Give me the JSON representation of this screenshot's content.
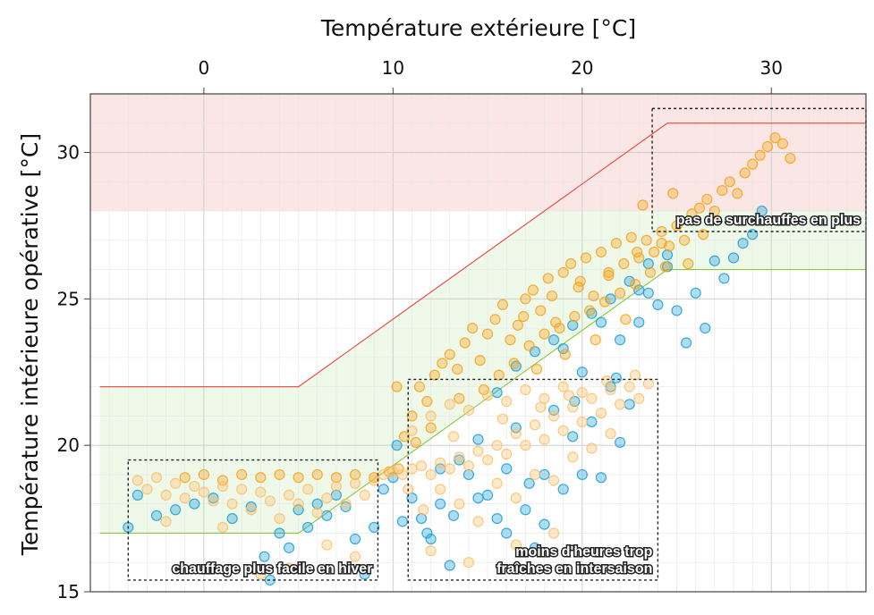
{
  "chart_data": {
    "type": "scatter",
    "title": "",
    "xlabel": "Température extérieure [°C]",
    "ylabel": "Température intérieure opérative [°C]",
    "xlim": [
      -6,
      35
    ],
    "ylim": [
      15,
      32
    ],
    "xticks": [
      0,
      10,
      20,
      30
    ],
    "yticks": [
      15,
      20,
      25,
      30
    ],
    "x_axis_position": "top",
    "grid": true,
    "colors": {
      "series_blue": "#1a9fd6",
      "series_orange": "#f7a21b",
      "series_light_orange": "#fbc06a",
      "upper_band": "#fbe3e3",
      "comfort_band": "#eef9ea",
      "upper_limit_line": "#e8433a",
      "lower_limit_line": "#8cc63f"
    },
    "upper_limit_line": {
      "x": [
        -5.5,
        5,
        24.5,
        33,
        35
      ],
      "y": [
        22,
        22,
        31,
        31,
        31
      ]
    },
    "lower_limit_line": {
      "x": [
        -5.5,
        5,
        24.5,
        33,
        35
      ],
      "y": [
        17,
        17,
        26,
        26,
        26
      ]
    },
    "overheat_zone": {
      "ymin": 28,
      "ymax": 32
    },
    "annotations": [
      {
        "text": "pas de surchauffes en plus",
        "box": {
          "x": [
            23.7,
            35
          ],
          "y": [
            27.3,
            31.5
          ]
        }
      },
      {
        "text": "moins d'heures trop\nfraîches en intersaison",
        "box": {
          "x": [
            10.8,
            24.0
          ],
          "y": [
            15.4,
            22.25
          ]
        }
      },
      {
        "text": "chauffage plus facile en hiver",
        "box": {
          "x": [
            -4.0,
            9.2
          ],
          "y": [
            15.4,
            19.5
          ]
        }
      }
    ],
    "series": [
      {
        "color": "#1a9fd6",
        "points": [
          [
            -4.0,
            17.2
          ],
          [
            -3.5,
            18.3
          ],
          [
            -2.5,
            17.6
          ],
          [
            -1.5,
            17.8
          ],
          [
            -0.5,
            18.0
          ],
          [
            0.5,
            18.2
          ],
          [
            1.5,
            17.5
          ],
          [
            2.5,
            17.9
          ],
          [
            3.2,
            16.2
          ],
          [
            3.5,
            15.4
          ],
          [
            4.0,
            17.0
          ],
          [
            4.5,
            16.5
          ],
          [
            5.0,
            17.8
          ],
          [
            5.5,
            17.2
          ],
          [
            6.0,
            18.0
          ],
          [
            6.5,
            17.6
          ],
          [
            7.0,
            18.3
          ],
          [
            7.5,
            17.9
          ],
          [
            8.0,
            16.8
          ],
          [
            8.5,
            15.6
          ],
          [
            9.0,
            17.2
          ],
          [
            9.5,
            18.5
          ],
          [
            10.0,
            18.9
          ],
          [
            10.2,
            20.0
          ],
          [
            10.5,
            17.4
          ],
          [
            11.0,
            18.2
          ],
          [
            11.5,
            17.5
          ],
          [
            12.0,
            16.8
          ],
          [
            12.5,
            18.0
          ],
          [
            13.0,
            15.9
          ],
          [
            13.5,
            19.5
          ],
          [
            14.0,
            19.0
          ],
          [
            14.5,
            20.2
          ],
          [
            15.0,
            18.3
          ],
          [
            15.5,
            17.5
          ],
          [
            16.0,
            19.2
          ],
          [
            16.5,
            20.6
          ],
          [
            17.0,
            17.8
          ],
          [
            17.5,
            16.5
          ],
          [
            18.0,
            19.0
          ],
          [
            18.5,
            21.2
          ],
          [
            19.0,
            18.5
          ],
          [
            19.5,
            20.3
          ],
          [
            20.0,
            22.5
          ],
          [
            20.5,
            20.8
          ],
          [
            21.0,
            18.9
          ],
          [
            21.5,
            22.0
          ],
          [
            22.0,
            23.6
          ],
          [
            22.5,
            21.4
          ],
          [
            23.0,
            24.2
          ],
          [
            23.5,
            25.2
          ],
          [
            24.0,
            24.8
          ],
          [
            24.5,
            26.1
          ],
          [
            25.0,
            24.6
          ],
          [
            25.5,
            23.5
          ],
          [
            26.0,
            25.2
          ],
          [
            26.5,
            24.0
          ],
          [
            27.0,
            26.3
          ],
          [
            27.5,
            25.7
          ],
          [
            28.0,
            26.4
          ],
          [
            28.5,
            26.9
          ],
          [
            29.0,
            27.2
          ],
          [
            29.5,
            28.0
          ],
          [
            15.5,
            21.8
          ],
          [
            16.5,
            22.7
          ],
          [
            17.5,
            23.2
          ],
          [
            18.5,
            23.6
          ],
          [
            19.5,
            24.1
          ],
          [
            20.5,
            24.5
          ],
          [
            21.5,
            25.0
          ],
          [
            22.5,
            25.6
          ],
          [
            23.5,
            26.2
          ],
          [
            24.5,
            26.5
          ],
          [
            19.0,
            23.3
          ],
          [
            21.0,
            24.2
          ],
          [
            23.0,
            25.3
          ],
          [
            12.5,
            19.2
          ],
          [
            14.5,
            18.2
          ],
          [
            16.0,
            17.0
          ],
          [
            18.0,
            17.3
          ],
          [
            20.0,
            19.0
          ],
          [
            22.0,
            20.1
          ],
          [
            11.8,
            17.0
          ],
          [
            13.2,
            17.6
          ],
          [
            17.2,
            18.7
          ],
          [
            19.6,
            21.5
          ],
          [
            21.8,
            22.3
          ]
        ]
      },
      {
        "color": "#f7a21b",
        "points": [
          [
            -1.0,
            18.9
          ],
          [
            0.0,
            19.0
          ],
          [
            1.0,
            18.8
          ],
          [
            2.0,
            19.0
          ],
          [
            3.0,
            18.9
          ],
          [
            4.0,
            19.0
          ],
          [
            5.0,
            18.9
          ],
          [
            6.0,
            19.0
          ],
          [
            7.0,
            18.9
          ],
          [
            8.0,
            19.0
          ],
          [
            9.0,
            18.9
          ],
          [
            9.8,
            19.1
          ],
          [
            10.3,
            19.2
          ],
          [
            10.6,
            20.3
          ],
          [
            11.0,
            21.0
          ],
          [
            11.4,
            22.0
          ],
          [
            11.8,
            21.5
          ],
          [
            12.2,
            22.4
          ],
          [
            12.6,
            22.8
          ],
          [
            13.0,
            23.1
          ],
          [
            13.4,
            22.6
          ],
          [
            13.8,
            23.5
          ],
          [
            14.2,
            24.0
          ],
          [
            14.6,
            22.9
          ],
          [
            15.0,
            23.8
          ],
          [
            15.4,
            24.3
          ],
          [
            15.8,
            24.8
          ],
          [
            16.2,
            23.6
          ],
          [
            16.6,
            24.1
          ],
          [
            17.0,
            25.0
          ],
          [
            17.4,
            25.3
          ],
          [
            17.8,
            24.6
          ],
          [
            18.2,
            25.7
          ],
          [
            18.6,
            24.2
          ],
          [
            19.0,
            25.9
          ],
          [
            19.4,
            26.2
          ],
          [
            19.8,
            25.4
          ],
          [
            20.2,
            26.4
          ],
          [
            20.6,
            25.1
          ],
          [
            21.0,
            26.6
          ],
          [
            21.4,
            25.8
          ],
          [
            21.8,
            26.9
          ],
          [
            22.2,
            26.2
          ],
          [
            22.6,
            27.1
          ],
          [
            23.0,
            26.4
          ],
          [
            23.4,
            27.0
          ],
          [
            23.8,
            26.6
          ],
          [
            24.2,
            27.3
          ],
          [
            24.6,
            26.8
          ],
          [
            25.0,
            27.5
          ],
          [
            25.4,
            27.0
          ],
          [
            25.8,
            27.9
          ],
          [
            26.2,
            28.1
          ],
          [
            26.6,
            28.4
          ],
          [
            27.0,
            28.0
          ],
          [
            27.4,
            28.7
          ],
          [
            27.8,
            29.0
          ],
          [
            28.2,
            28.6
          ],
          [
            28.6,
            29.3
          ],
          [
            29.0,
            29.6
          ],
          [
            29.4,
            29.9
          ],
          [
            29.8,
            30.2
          ],
          [
            30.2,
            30.5
          ],
          [
            30.6,
            30.3
          ],
          [
            31.0,
            29.8
          ],
          [
            15.6,
            22.4
          ],
          [
            16.4,
            22.8
          ],
          [
            17.2,
            23.4
          ],
          [
            18.0,
            23.8
          ],
          [
            18.8,
            24.0
          ],
          [
            19.6,
            24.4
          ],
          [
            20.4,
            24.6
          ],
          [
            21.2,
            24.9
          ],
          [
            22.0,
            25.2
          ],
          [
            22.8,
            25.5
          ],
          [
            23.6,
            25.9
          ],
          [
            24.4,
            26.1
          ],
          [
            16.9,
            24.4
          ],
          [
            18.4,
            25.1
          ],
          [
            19.9,
            25.6
          ],
          [
            21.4,
            25.9
          ],
          [
            22.9,
            26.6
          ],
          [
            24.2,
            26.9
          ],
          [
            20.7,
            23.6
          ],
          [
            22.3,
            24.3
          ],
          [
            19.1,
            23.1
          ],
          [
            17.6,
            22.6
          ],
          [
            13.5,
            21.6
          ],
          [
            12.0,
            20.6
          ],
          [
            11.2,
            20.1
          ],
          [
            14.8,
            21.9
          ],
          [
            10.2,
            22.0
          ],
          [
            23.2,
            28.2
          ],
          [
            24.8,
            28.6
          ],
          [
            25.6,
            26.2
          ],
          [
            26.4,
            27.2
          ]
        ]
      },
      {
        "color": "#fbc06a",
        "points": [
          [
            -3.5,
            18.8
          ],
          [
            -3.0,
            18.5
          ],
          [
            -2.5,
            18.9
          ],
          [
            -2.0,
            18.3
          ],
          [
            -1.5,
            18.7
          ],
          [
            -1.0,
            18.2
          ],
          [
            -0.5,
            18.6
          ],
          [
            0.0,
            18.4
          ],
          [
            0.5,
            18.1
          ],
          [
            1.0,
            18.6
          ],
          [
            1.5,
            18.0
          ],
          [
            2.0,
            18.5
          ],
          [
            2.5,
            17.8
          ],
          [
            3.0,
            18.4
          ],
          [
            3.5,
            18.1
          ],
          [
            4.0,
            17.5
          ],
          [
            4.5,
            18.3
          ],
          [
            5.0,
            18.0
          ],
          [
            5.5,
            18.5
          ],
          [
            6.0,
            17.7
          ],
          [
            6.5,
            18.2
          ],
          [
            7.0,
            18.6
          ],
          [
            7.5,
            18.0
          ],
          [
            8.0,
            18.7
          ],
          [
            8.5,
            18.3
          ],
          [
            9.0,
            18.8
          ],
          [
            9.5,
            19.0
          ],
          [
            10.0,
            19.1
          ],
          [
            10.5,
            19.0
          ],
          [
            11.0,
            19.2
          ],
          [
            11.5,
            19.3
          ],
          [
            12.0,
            19.0
          ],
          [
            12.5,
            19.4
          ],
          [
            13.0,
            19.2
          ],
          [
            13.5,
            19.6
          ],
          [
            14.0,
            19.3
          ],
          [
            14.5,
            19.8
          ],
          [
            15.0,
            19.5
          ],
          [
            15.5,
            20.0
          ],
          [
            16.0,
            19.7
          ],
          [
            16.5,
            20.4
          ],
          [
            17.0,
            20.0
          ],
          [
            17.5,
            20.7
          ],
          [
            18.0,
            20.2
          ],
          [
            18.5,
            21.0
          ],
          [
            19.0,
            20.5
          ],
          [
            19.5,
            21.3
          ],
          [
            20.0,
            20.8
          ],
          [
            20.5,
            21.6
          ],
          [
            21.0,
            21.1
          ],
          [
            21.5,
            21.9
          ],
          [
            22.0,
            21.4
          ],
          [
            22.5,
            22.0
          ],
          [
            23.0,
            21.6
          ],
          [
            23.5,
            22.1
          ],
          [
            11.0,
            20.5
          ],
          [
            12.0,
            21.0
          ],
          [
            13.0,
            21.4
          ],
          [
            14.0,
            21.2
          ],
          [
            15.0,
            21.7
          ],
          [
            16.0,
            21.5
          ],
          [
            17.0,
            21.9
          ],
          [
            18.0,
            21.6
          ],
          [
            19.0,
            22.0
          ],
          [
            20.0,
            21.8
          ],
          [
            12.5,
            18.5
          ],
          [
            13.5,
            18.0
          ],
          [
            14.5,
            17.4
          ],
          [
            15.5,
            18.7
          ],
          [
            16.5,
            18.2
          ],
          [
            17.5,
            19.0
          ],
          [
            18.5,
            18.8
          ],
          [
            19.5,
            19.6
          ],
          [
            20.5,
            19.9
          ],
          [
            21.5,
            20.4
          ],
          [
            3.0,
            15.6
          ],
          [
            4.5,
            15.8
          ],
          [
            6.5,
            16.6
          ],
          [
            8.0,
            16.2
          ],
          [
            -2.0,
            17.4
          ],
          [
            1.0,
            17.2
          ],
          [
            12.0,
            16.4
          ],
          [
            14.0,
            16.0
          ],
          [
            16.5,
            16.6
          ],
          [
            18.5,
            17.0
          ],
          [
            13.2,
            20.3
          ],
          [
            15.8,
            20.9
          ],
          [
            17.8,
            21.3
          ],
          [
            19.3,
            21.7
          ],
          [
            21.3,
            22.2
          ],
          [
            22.8,
            22.4
          ],
          [
            10.8,
            18.5
          ],
          [
            11.6,
            17.8
          ]
        ]
      }
    ]
  }
}
